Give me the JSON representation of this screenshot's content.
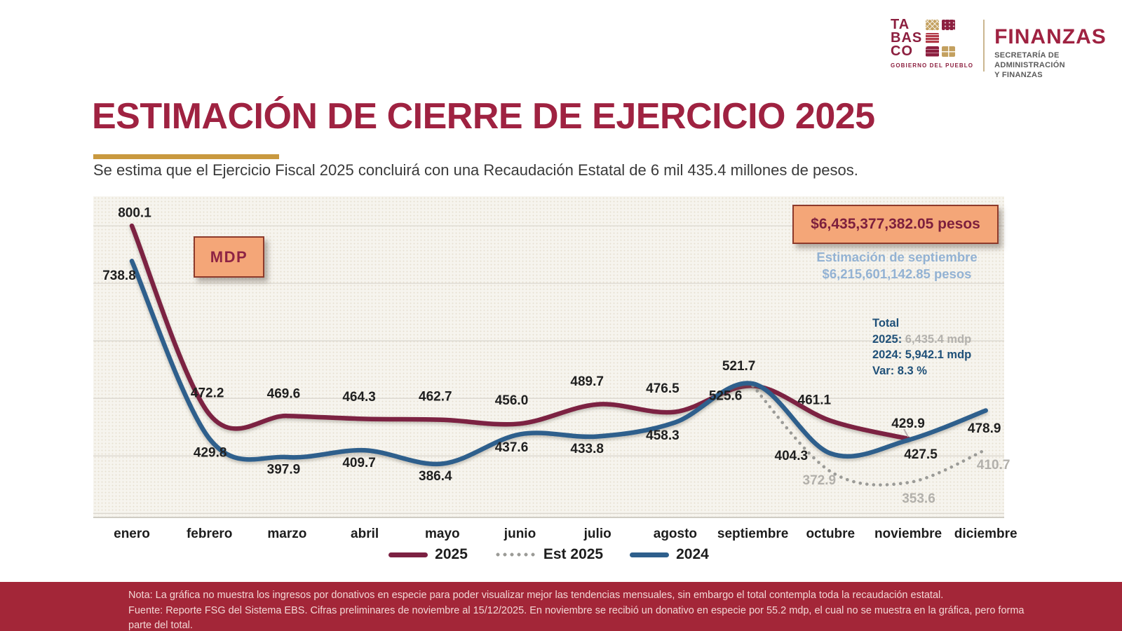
{
  "header": {
    "logo_rows": [
      "TA",
      "BAS",
      "CO"
    ],
    "logo_tagline": "GOBIERNO DEL PUEBLO",
    "brand": "FINANZAS",
    "brand_sub1": "SECRETARÍA DE ADMINISTRACIÓN",
    "brand_sub2": "Y FINANZAS"
  },
  "title": "ESTIMACIÓN DE CIERRE DE EJERCICIO 2025",
  "subtitle": "Se estima que el Ejercicio Fiscal 2025 concluirá con una Recaudación Estatal de 6 mil 435.4 millones de pesos.",
  "colors": {
    "accent_maroon": "#9f2241",
    "line_2025": "#7c2142",
    "line_2024": "#2e5f8c",
    "est_gray": "#9b9b97",
    "box_orange": "#f4a678",
    "box_border": "#8d3a2b",
    "totals_blue": "#1f5078",
    "light_blue_text": "#93b2d3",
    "footer_bg": "#a32638",
    "gold": "#c9993f"
  },
  "chart_data": {
    "type": "line",
    "unit_label": "MDP",
    "categories": [
      "enero",
      "febrero",
      "marzo",
      "abril",
      "mayo",
      "junio",
      "julio",
      "agosto",
      "septiembre",
      "octubre",
      "noviembre",
      "diciembre"
    ],
    "series": [
      {
        "name": "2025",
        "color": "#7c2142",
        "style": "solid",
        "label_color": "#1f1f1f",
        "values": [
          800.1,
          472.2,
          469.6,
          464.3,
          462.7,
          456.0,
          489.7,
          476.5,
          521.7,
          461.1,
          429.9,
          null
        ]
      },
      {
        "name": "Est 2025",
        "color": "#9b9b97",
        "style": "dotted",
        "label_color": "#b2b0ab",
        "label_skip": [
          8
        ],
        "values": [
          null,
          null,
          null,
          null,
          null,
          null,
          null,
          null,
          521.7,
          372.9,
          353.6,
          410.7
        ]
      },
      {
        "name": "2024",
        "color": "#2e5f8c",
        "style": "solid",
        "label_color": "#1f1f1f",
        "values": [
          738.8,
          429.8,
          397.9,
          409.7,
          386.4,
          437.6,
          433.8,
          458.3,
          525.6,
          404.3,
          427.5,
          478.9
        ]
      }
    ],
    "ylim": [
      300,
      851.3
    ],
    "gridlines": [
      300,
      400,
      500,
      600,
      700,
      800
    ],
    "grid_on": true,
    "legend_position": "bottom",
    "annotations": {
      "estimate_box": "$6,435,377,382.05 pesos",
      "sept_estimate_line1": "Estimación de septiembre",
      "sept_estimate_line2": "$6,215,601,142.85 pesos",
      "totals": {
        "title": "Total",
        "y2025_label": "2025:",
        "y2025_value": "6,435.4 mdp",
        "y2024_label": "2024:",
        "y2024_value": "5,942.1 mdp",
        "var_label": "Var:",
        "var_value": "8.3 %"
      }
    }
  },
  "footer": {
    "note": "Nota: La gráfica no muestra los ingresos por donativos en especie para poder visualizar mejor las tendencias mensuales, sin embargo el total contempla toda la recaudación estatal.",
    "fuente": "Fuente: Reporte FSG del Sistema EBS. Cifras preliminares de noviembre al 15/12/2025. En noviembre se recibió un donativo en especie por 55.2 mdp, el cual no se muestra en la gráfica, pero forma parte del total."
  }
}
